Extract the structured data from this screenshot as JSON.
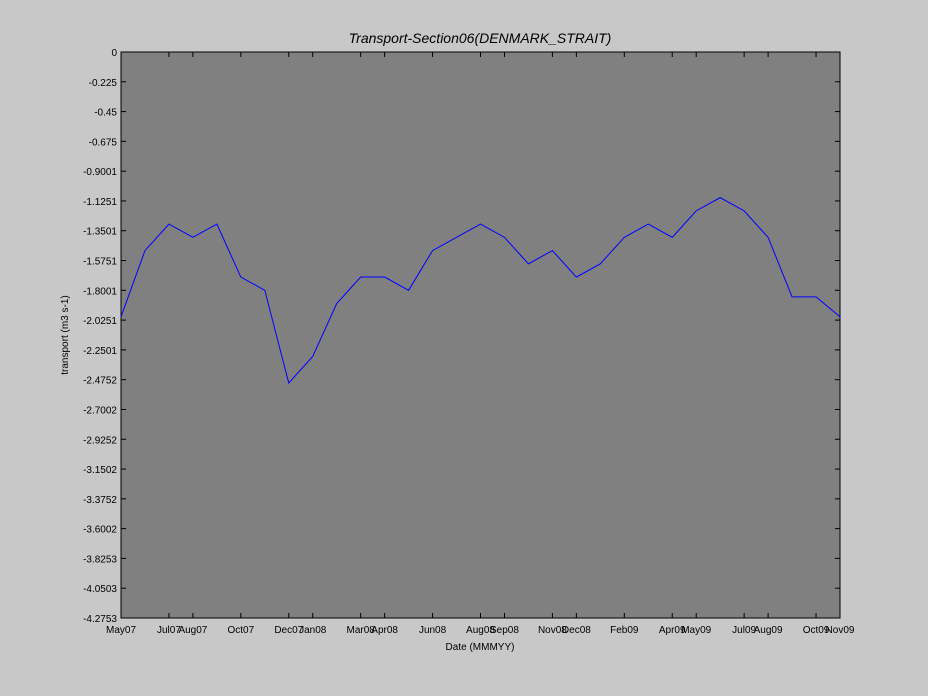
{
  "chart_data": {
    "type": "line",
    "title": "Transport-Section06(DENMARK_STRAIT)",
    "xlabel": "Date (MMMYY)",
    "ylabel": "transport (m3 s-1)",
    "x": [
      "2007-05",
      "2007-06",
      "2007-07",
      "2007-08",
      "2007-09",
      "2007-10",
      "2007-11",
      "2007-12",
      "2008-01",
      "2008-02",
      "2008-03",
      "2008-04",
      "2008-05",
      "2008-06",
      "2008-07",
      "2008-08",
      "2008-09",
      "2008-10",
      "2008-11",
      "2008-12",
      "2009-01",
      "2009-02",
      "2009-03",
      "2009-04",
      "2009-05",
      "2009-06",
      "2009-07",
      "2009-08",
      "2009-09",
      "2009-10",
      "2009-11"
    ],
    "series": [
      {
        "name": "transport",
        "color": "#0000ff",
        "values": [
          -2.0,
          -1.5,
          -1.3,
          -1.4,
          -1.3,
          -1.7,
          -1.8,
          -2.5,
          -2.3,
          -1.9,
          -1.7,
          -1.7,
          -1.8,
          -1.5,
          -1.4,
          -1.3,
          -1.4,
          -1.6,
          -1.5,
          -1.7,
          -1.6,
          -1.4,
          -1.3,
          -1.4,
          -1.2,
          -1.1,
          -1.2,
          -1.4,
          -1.85,
          -1.85,
          -2.0
        ]
      }
    ],
    "xlim": [
      "2007-05",
      "2009-11"
    ],
    "xticks": [
      {
        "value": "2007-05",
        "label": "May07"
      },
      {
        "value": "2007-07",
        "label": "Jul07"
      },
      {
        "value": "2007-08",
        "label": "Aug07"
      },
      {
        "value": "2007-10",
        "label": "Oct07"
      },
      {
        "value": "2007-12",
        "label": "Dec07"
      },
      {
        "value": "2008-01",
        "label": "Jan08"
      },
      {
        "value": "2008-03",
        "label": "Mar08"
      },
      {
        "value": "2008-04",
        "label": "Apr08"
      },
      {
        "value": "2008-06",
        "label": "Jun08"
      },
      {
        "value": "2008-08",
        "label": "Aug08"
      },
      {
        "value": "2008-09",
        "label": "Sep08"
      },
      {
        "value": "2008-11",
        "label": "Nov08"
      },
      {
        "value": "2008-12",
        "label": "Dec08"
      },
      {
        "value": "2009-02",
        "label": "Feb09"
      },
      {
        "value": "2009-04",
        "label": "Apr09"
      },
      {
        "value": "2009-05",
        "label": "May09"
      },
      {
        "value": "2009-07",
        "label": "Jul09"
      },
      {
        "value": "2009-08",
        "label": "Aug09"
      },
      {
        "value": "2009-10",
        "label": "Oct09"
      },
      {
        "value": "2009-11",
        "label": "Nov09"
      }
    ],
    "ylim": [
      -4.2753,
      0
    ],
    "yticks": [
      0,
      -0.225,
      -0.45,
      -0.675,
      -0.9001,
      -1.1251,
      -1.3501,
      -1.5751,
      -1.8001,
      -2.0251,
      -2.2501,
      -2.4752,
      -2.7002,
      -2.9252,
      -3.1502,
      -3.3752,
      -3.6002,
      -3.8253,
      -4.0503,
      -4.2753
    ],
    "grid": false
  }
}
